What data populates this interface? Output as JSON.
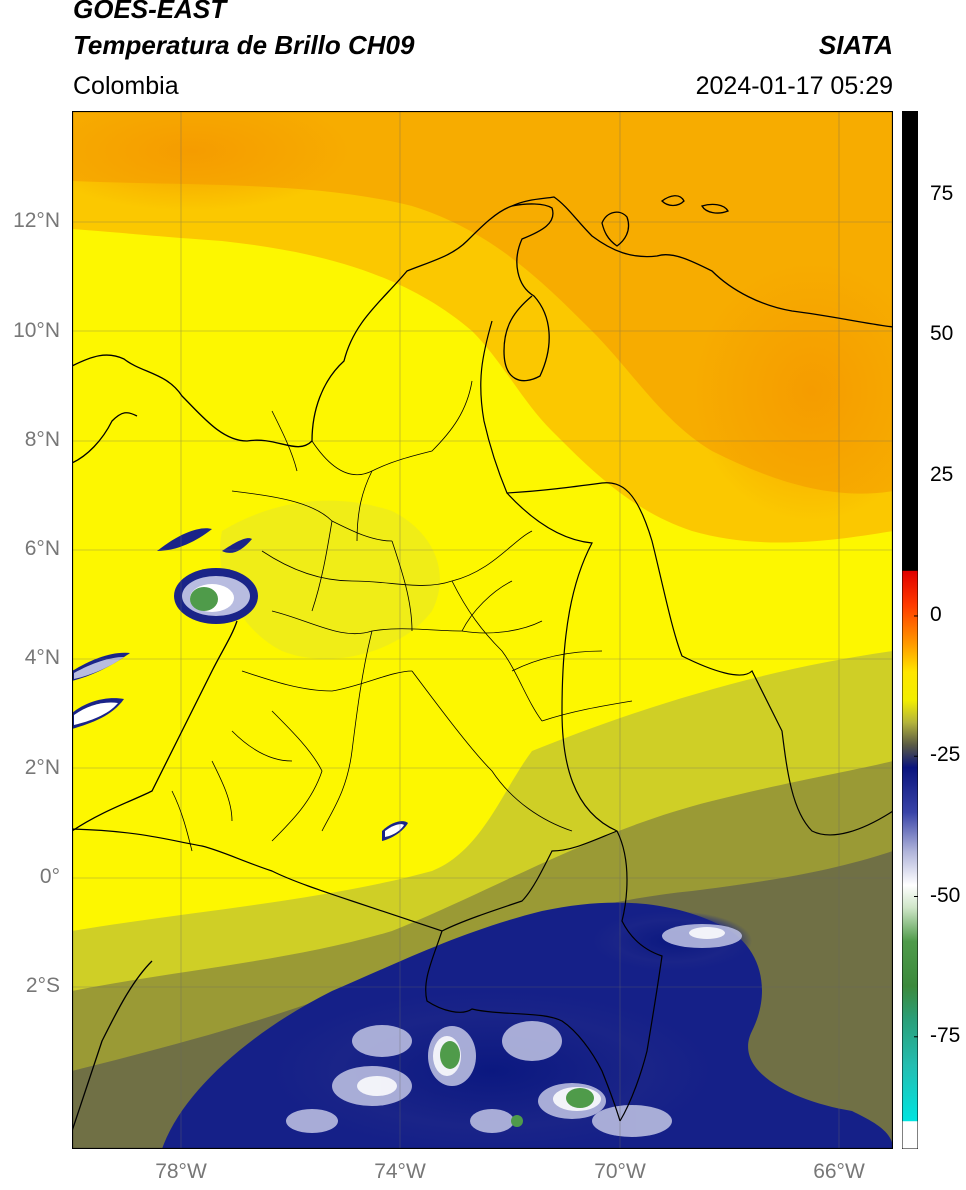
{
  "header": {
    "satellite": "GOES-EAST",
    "product": "Temperatura de Brillo CH09",
    "region": "Colombia",
    "brand": "SIATA",
    "timestamp": "2024-01-17 05:29"
  },
  "map": {
    "lat_ticks": [
      "12°N",
      "10°N",
      "8°N",
      "6°N",
      "4°N",
      "2°N",
      "0°",
      "2°S"
    ],
    "lon_ticks": [
      "78°W",
      "74°W",
      "70°W",
      "66°W"
    ],
    "extent": {
      "lon_min": -80,
      "lon_max": -65,
      "lat_min": -5.2,
      "lat_max": 13.9
    },
    "colors": {
      "warm_orange": "#f6a400",
      "yellow": "#fdf700",
      "olive": "#8f8f2e",
      "navy": "#0c1a80",
      "green": "#2f8f3a",
      "black": "#000000"
    }
  },
  "colorbar": {
    "ticks": [
      "75",
      "50",
      "25",
      "0",
      "-25",
      "-50",
      "-75"
    ],
    "tick_values": [
      75,
      50,
      25,
      0,
      -25,
      -50,
      -75
    ],
    "range": [
      -95,
      90
    ],
    "stops": [
      {
        "v": 90,
        "c": "#000000"
      },
      {
        "v": 8.1,
        "c": "#000000"
      },
      {
        "v": 8,
        "c": "#e00000"
      },
      {
        "v": 2,
        "c": "#ff3a00"
      },
      {
        "v": -5,
        "c": "#ff9a00"
      },
      {
        "v": -10,
        "c": "#ffe600"
      },
      {
        "v": -15,
        "c": "#f2ee00"
      },
      {
        "v": -19,
        "c": "#b4b43a"
      },
      {
        "v": -23,
        "c": "#5a5a44"
      },
      {
        "v": -27,
        "c": "#0a147e"
      },
      {
        "v": -35,
        "c": "#3a44a8"
      },
      {
        "v": -42,
        "c": "#b0b4da"
      },
      {
        "v": -48,
        "c": "#ffffff"
      },
      {
        "v": -52,
        "c": "#cfe6c8"
      },
      {
        "v": -58,
        "c": "#4f9b4a"
      },
      {
        "v": -66,
        "c": "#3c8a3c"
      },
      {
        "v": -72,
        "c": "#2aa07a"
      },
      {
        "v": -80,
        "c": "#24bdb0"
      },
      {
        "v": -90,
        "c": "#00e4e0"
      },
      {
        "v": -90.1,
        "c": "#ffffff"
      },
      {
        "v": -95,
        "c": "#ffffff"
      }
    ]
  }
}
